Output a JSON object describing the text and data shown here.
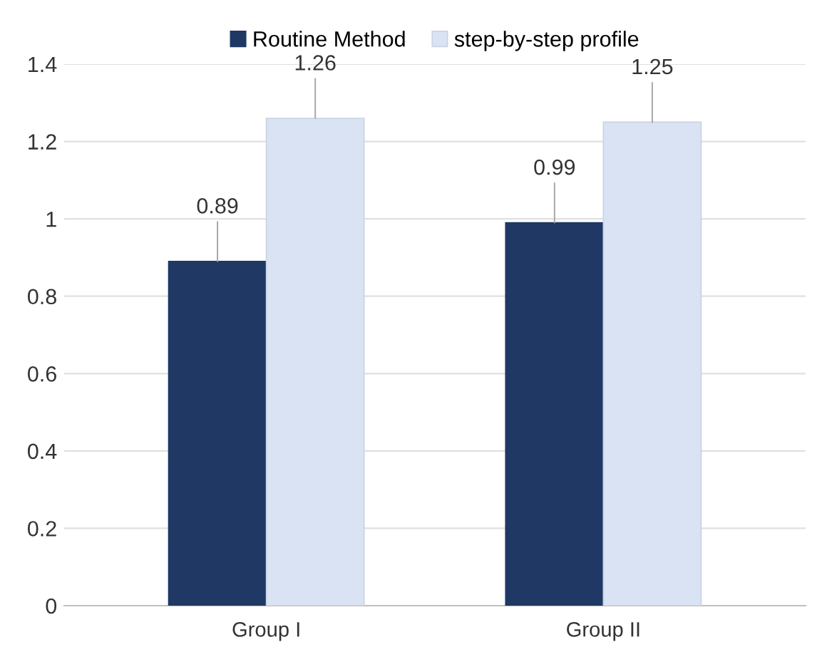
{
  "chart_data": {
    "type": "bar",
    "categories": [
      "Group I",
      "Group II"
    ],
    "series": [
      {
        "name": "Routine Method",
        "color": "#1f3864",
        "values": [
          0.89,
          0.99
        ]
      },
      {
        "name": "step-by-step profile",
        "color": "#dae3f3",
        "values": [
          1.26,
          1.25
        ]
      }
    ],
    "ylim": [
      0,
      1.4
    ],
    "yticks": [
      0,
      0.2,
      0.4,
      0.6,
      0.8,
      1,
      1.2,
      1.4
    ],
    "grid": "y",
    "legend": "top",
    "data_labels": true
  }
}
